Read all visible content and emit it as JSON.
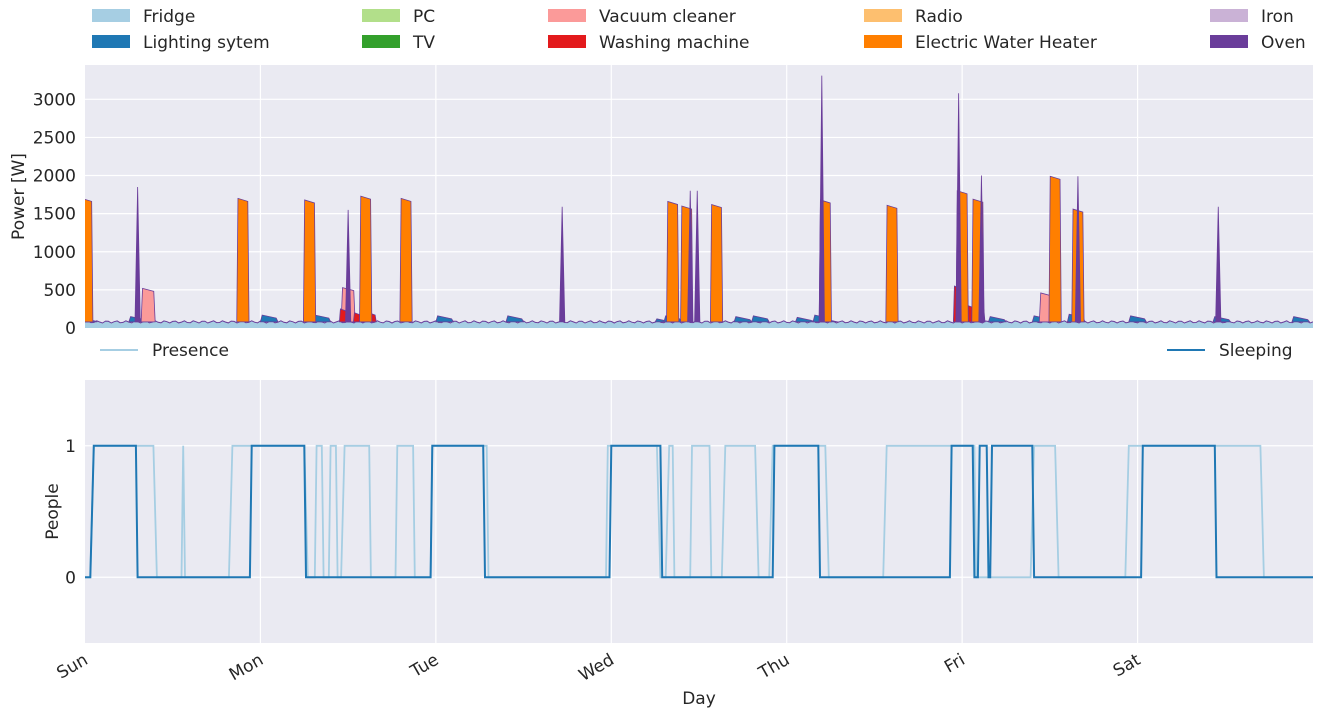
{
  "chart_data": [
    {
      "type": "area",
      "stacked": true,
      "ylabel": "Power [W]",
      "ylim": [
        0,
        3450
      ],
      "yticks": [
        0,
        500,
        1000,
        1500,
        2000,
        2500,
        3000
      ],
      "grid": true,
      "legend_placement": "top",
      "legend": [
        {
          "name": "Fridge",
          "color": "#a6cee3"
        },
        {
          "name": "Lighting sytem",
          "color": "#1f78b4"
        },
        {
          "name": "PC",
          "color": "#b2df8a"
        },
        {
          "name": "TV",
          "color": "#33a02c"
        },
        {
          "name": "Vacuum cleaner",
          "color": "#fb9a99"
        },
        {
          "name": "Washing  machine",
          "color": "#e31a1c"
        },
        {
          "name": "Radio",
          "color": "#fdbf6f"
        },
        {
          "name": "Electric Water Heater",
          "color": "#ff7f00"
        },
        {
          "name": "Iron",
          "color": "#cab2d6"
        },
        {
          "name": "Oven",
          "color": "#6a3d9a"
        }
      ],
      "fridge_base_w": 80,
      "series": [
        {
          "name": "Lighting sytem",
          "color": "#1f78b4",
          "points": [
            [
              0,
              130
            ],
            [
              0.02,
              130
            ],
            [
              0.3,
              150
            ],
            [
              1.05,
              170
            ],
            [
              1.3,
              190
            ],
            [
              1.35,
              170
            ],
            [
              1.55,
              160
            ],
            [
              2.05,
              160
            ],
            [
              2.45,
              160
            ],
            [
              3.3,
              120
            ],
            [
              3.35,
              160
            ],
            [
              3.75,
              150
            ],
            [
              3.85,
              160
            ],
            [
              4.1,
              140
            ],
            [
              4.2,
              170
            ],
            [
              4.25,
              120
            ],
            [
              5.2,
              150
            ],
            [
              5.45,
              160
            ],
            [
              5.65,
              180
            ],
            [
              6.0,
              160
            ],
            [
              6.48,
              150
            ],
            [
              6.93,
              150
            ]
          ],
          "half_width": 0.05
        },
        {
          "name": "Vacuum cleaner",
          "color": "#fb9a99",
          "points": [
            [
              0.36,
              520
            ],
            [
              1.5,
              530
            ],
            [
              5.48,
              460
            ]
          ],
          "half_width": 0.04
        },
        {
          "name": "Washing  machine",
          "color": "#e31a1c",
          "points": [
            [
              1.48,
              250
            ],
            [
              1.56,
              200
            ],
            [
              1.63,
              210
            ],
            [
              4.98,
              550
            ],
            [
              5.05,
              300
            ],
            [
              5.1,
              280
            ]
          ],
          "half_width": 0.03
        },
        {
          "name": "Electric Water Heater",
          "color": "#ff7f00",
          "points": [
            [
              0.01,
              1700
            ],
            [
              0.9,
              1700
            ],
            [
              1.28,
              1680
            ],
            [
              1.6,
              1730
            ],
            [
              1.83,
              1700
            ],
            [
              3.35,
              1660
            ],
            [
              3.43,
              1600
            ],
            [
              3.6,
              1620
            ],
            [
              4.22,
              1680
            ],
            [
              4.6,
              1610
            ],
            [
              5.0,
              1800
            ],
            [
              5.09,
              1690
            ],
            [
              5.53,
              1990
            ],
            [
              5.66,
              1560
            ]
          ],
          "half_width": 0.035
        },
        {
          "name": "Oven",
          "color": "#6a3d9a",
          "points": [
            [
              0.3,
              1850
            ],
            [
              1.5,
              1550
            ],
            [
              2.72,
              1590
            ],
            [
              3.45,
              1800
            ],
            [
              3.49,
              1800
            ],
            [
              4.2,
              3310
            ],
            [
              4.98,
              3080
            ],
            [
              5.11,
              2000
            ],
            [
              5.66,
              1990
            ],
            [
              6.46,
              1590
            ]
          ],
          "half_width": 0.015
        }
      ]
    },
    {
      "type": "line",
      "xlabel": "Day",
      "ylabel": "People",
      "ylim": [
        -0.5,
        1.5
      ],
      "yticks": [
        0,
        1
      ],
      "x_categories": [
        "Sun",
        "Mon",
        "Tue",
        "Wed",
        "Thu",
        "Fri",
        "Sat"
      ],
      "grid": true,
      "legend_placement": "top",
      "series": [
        {
          "name": "Presence",
          "color": "#a6cee3",
          "points": [
            [
              0,
              0
            ],
            [
              0.03,
              0
            ],
            [
              0.05,
              1
            ],
            [
              0.39,
              1
            ],
            [
              0.41,
              0
            ],
            [
              0.55,
              0
            ],
            [
              0.56,
              1
            ],
            [
              0.57,
              0
            ],
            [
              0.82,
              0
            ],
            [
              0.84,
              1
            ],
            [
              1.25,
              1
            ],
            [
              1.27,
              0
            ],
            [
              1.31,
              0
            ],
            [
              1.32,
              1
            ],
            [
              1.35,
              1
            ],
            [
              1.36,
              0
            ],
            [
              1.39,
              0
            ],
            [
              1.4,
              1
            ],
            [
              1.43,
              1
            ],
            [
              1.44,
              0
            ],
            [
              1.46,
              0
            ],
            [
              1.48,
              1
            ],
            [
              1.62,
              1
            ],
            [
              1.63,
              0
            ],
            [
              1.77,
              0
            ],
            [
              1.78,
              1
            ],
            [
              1.87,
              1
            ],
            [
              1.88,
              0
            ],
            [
              1.97,
              0
            ],
            [
              1.98,
              1
            ],
            [
              2.29,
              1
            ],
            [
              2.3,
              0
            ],
            [
              2.97,
              0
            ],
            [
              2.98,
              1
            ],
            [
              3.26,
              1
            ],
            [
              3.28,
              0
            ],
            [
              3.31,
              0
            ],
            [
              3.33,
              1
            ],
            [
              3.35,
              1
            ],
            [
              3.36,
              0
            ],
            [
              3.45,
              0
            ],
            [
              3.46,
              1
            ],
            [
              3.56,
              1
            ],
            [
              3.57,
              0
            ],
            [
              3.63,
              0
            ],
            [
              3.65,
              1
            ],
            [
              3.82,
              1
            ],
            [
              3.84,
              0
            ],
            [
              3.9,
              0
            ],
            [
              3.92,
              1
            ],
            [
              4.22,
              1
            ],
            [
              4.24,
              0
            ],
            [
              4.55,
              0
            ],
            [
              4.57,
              1
            ],
            [
              5.07,
              1
            ],
            [
              5.08,
              0
            ],
            [
              5.39,
              0
            ],
            [
              5.41,
              1
            ],
            [
              5.53,
              1
            ],
            [
              5.55,
              0
            ],
            [
              5.93,
              0
            ],
            [
              5.95,
              1
            ],
            [
              6.7,
              1
            ],
            [
              6.72,
              0
            ],
            [
              7,
              0
            ]
          ]
        },
        {
          "name": "Sleeping",
          "color": "#1f78b4",
          "points": [
            [
              0,
              0
            ],
            [
              0.03,
              0
            ],
            [
              0.05,
              1
            ],
            [
              0.29,
              1
            ],
            [
              0.3,
              0
            ],
            [
              0.94,
              0
            ],
            [
              0.95,
              1
            ],
            [
              1.25,
              1
            ],
            [
              1.26,
              0
            ],
            [
              1.97,
              0
            ],
            [
              1.98,
              1
            ],
            [
              2.27,
              1
            ],
            [
              2.28,
              0
            ],
            [
              2.99,
              0
            ],
            [
              3.0,
              1
            ],
            [
              3.28,
              1
            ],
            [
              3.29,
              0
            ],
            [
              3.92,
              0
            ],
            [
              3.93,
              1
            ],
            [
              4.18,
              1
            ],
            [
              4.19,
              0
            ],
            [
              4.93,
              0
            ],
            [
              4.94,
              1
            ],
            [
              5.06,
              1
            ],
            [
              5.07,
              0
            ],
            [
              5.09,
              0
            ],
            [
              5.1,
              1
            ],
            [
              5.14,
              1
            ],
            [
              5.15,
              0
            ],
            [
              5.16,
              0
            ],
            [
              5.17,
              1
            ],
            [
              5.4,
              1
            ],
            [
              5.41,
              0
            ],
            [
              6.02,
              0
            ],
            [
              6.03,
              1
            ],
            [
              6.44,
              1
            ],
            [
              6.45,
              0
            ],
            [
              7,
              0
            ]
          ]
        }
      ]
    }
  ]
}
